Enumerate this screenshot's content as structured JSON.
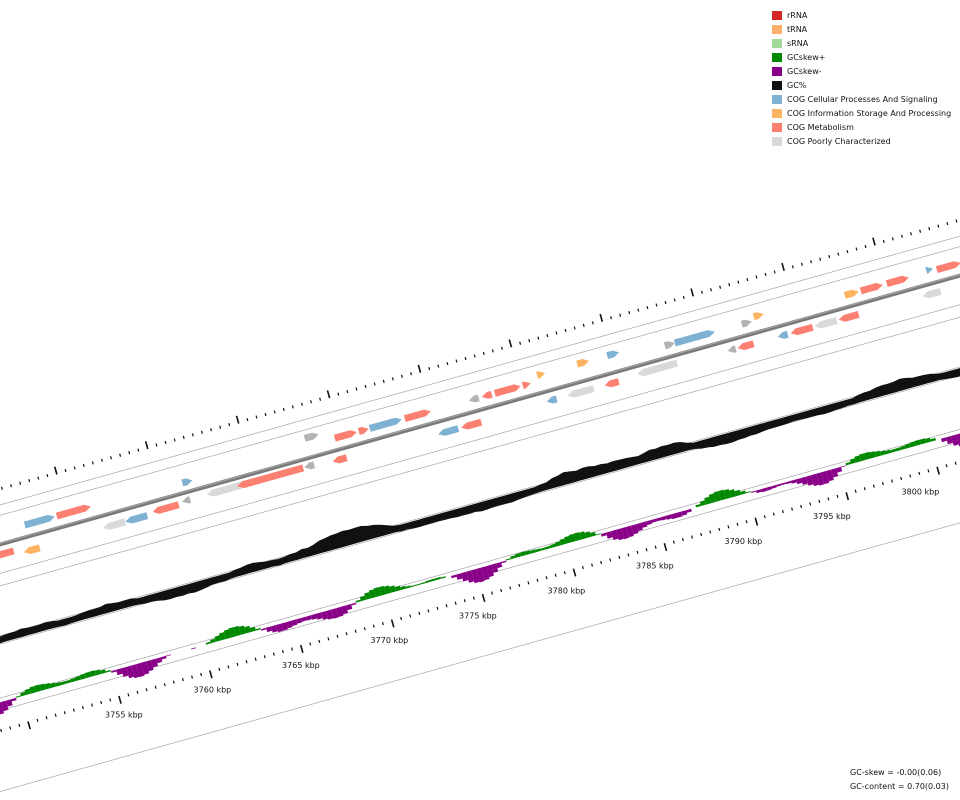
{
  "legend": [
    {
      "label": "rRNA",
      "color": "#d62728"
    },
    {
      "label": "tRNA",
      "color": "#fdae6b"
    },
    {
      "label": "sRNA",
      "color": "#a1d99b"
    },
    {
      "label": "GCskew+",
      "color": "#008800"
    },
    {
      "label": "GCskew-",
      "color": "#880088"
    },
    {
      "label": "GC%",
      "color": "#111111"
    },
    {
      "label": "COG Cellular Processes And Signaling",
      "color": "#7fb1d3"
    },
    {
      "label": "COG Information Storage And Processing",
      "color": "#fdb462"
    },
    {
      "label": "COG Metabolism",
      "color": "#fb8072"
    },
    {
      "label": "COG Poorly Characterized",
      "color": "#d9d9d9"
    }
  ],
  "ticks": [
    "3755 kbp",
    "3760 kbp",
    "3765 kbp",
    "3770 kbp",
    "3775 kbp",
    "3780 kbp",
    "3785 kbp",
    "3790 kbp",
    "3795 kbp",
    "3800 kbp"
  ],
  "stats": {
    "gc_skew": "GC-skew = -0.00(0.06)",
    "gc_content": "GC-content = 0.70(0.03)"
  },
  "colors": {
    "backbone": "#7a7a7a",
    "track_line": "#9a9a9a",
    "gc": "#111111",
    "skew_pos": "#008800",
    "skew_neg": "#880088",
    "unknown_feature": "#b3b3b3"
  },
  "features": [
    {
      "t": 0.005,
      "o": 10,
      "len": 0.026,
      "cat": "COG Metabolism",
      "dir": -1
    },
    {
      "t": 0.04,
      "o": 14,
      "len": 0.016,
      "cat": "COG Information Storage And Processing",
      "dir": -1
    },
    {
      "t": 0.048,
      "o": -12,
      "len": 0.03,
      "cat": "COG Cellular Processes And Signaling",
      "dir": 1
    },
    {
      "t": 0.08,
      "o": -12,
      "len": 0.034,
      "cat": "COG Metabolism",
      "dir": 1
    },
    {
      "t": 0.12,
      "o": 12,
      "len": 0.022,
      "cat": "COG Poorly Characterized",
      "dir": -1
    },
    {
      "t": 0.142,
      "o": 12,
      "len": 0.022,
      "cat": "COG Cellular Processes And Signaling",
      "dir": -1
    },
    {
      "t": 0.17,
      "o": 10,
      "len": 0.026,
      "cat": "COG Metabolism",
      "dir": -1
    },
    {
      "t": 0.2,
      "o": 8,
      "len": 0.008,
      "cat": "unknown",
      "dir": -1
    },
    {
      "t": 0.205,
      "o": -10,
      "len": 0.01,
      "cat": "COG Cellular Processes And Signaling",
      "dir": 1
    },
    {
      "t": 0.225,
      "o": 8,
      "len": 0.034,
      "cat": "COG Poorly Characterized",
      "dir": -1
    },
    {
      "t": 0.255,
      "o": 8,
      "len": 0.066,
      "cat": "COG Metabolism",
      "dir": -1
    },
    {
      "t": 0.322,
      "o": 8,
      "len": 0.01,
      "cat": "unknown",
      "dir": -1
    },
    {
      "t": 0.33,
      "o": -20,
      "len": 0.014,
      "cat": "unknown",
      "dir": 1
    },
    {
      "t": 0.35,
      "o": 10,
      "len": 0.014,
      "cat": "COG Metabolism",
      "dir": -1
    },
    {
      "t": 0.358,
      "o": -12,
      "len": 0.022,
      "cat": "COG Metabolism",
      "dir": 1
    },
    {
      "t": 0.382,
      "o": -12,
      "len": 0.01,
      "cat": "COG Metabolism",
      "dir": 1
    },
    {
      "t": 0.393,
      "o": -12,
      "len": 0.032,
      "cat": "COG Cellular Processes And Signaling",
      "dir": 1
    },
    {
      "t": 0.428,
      "o": -12,
      "len": 0.026,
      "cat": "COG Metabolism",
      "dir": 1
    },
    {
      "t": 0.455,
      "o": 12,
      "len": 0.02,
      "cat": "COG Cellular Processes And Signaling",
      "dir": -1
    },
    {
      "t": 0.478,
      "o": 12,
      "len": 0.02,
      "cat": "COG Metabolism",
      "dir": -1
    },
    {
      "t": 0.492,
      "o": -12,
      "len": 0.01,
      "cat": "unknown",
      "dir": -1
    },
    {
      "t": 0.505,
      "o": -12,
      "len": 0.01,
      "cat": "COG Metabolism",
      "dir": -1
    },
    {
      "t": 0.518,
      "o": -12,
      "len": 0.026,
      "cat": "COG Metabolism",
      "dir": 1
    },
    {
      "t": 0.546,
      "o": -12,
      "len": 0.008,
      "cat": "COG Metabolism",
      "dir": 1
    },
    {
      "t": 0.562,
      "o": -18,
      "len": 0.008,
      "cat": "COG Information Storage And Processing",
      "dir": 1
    },
    {
      "t": 0.564,
      "o": 10,
      "len": 0.01,
      "cat": "COG Cellular Processes And Signaling",
      "dir": -1
    },
    {
      "t": 0.585,
      "o": 10,
      "len": 0.026,
      "cat": "COG Poorly Characterized",
      "dir": -1
    },
    {
      "t": 0.602,
      "o": -18,
      "len": 0.012,
      "cat": "COG Information Storage And Processing",
      "dir": 1
    },
    {
      "t": 0.622,
      "o": 10,
      "len": 0.014,
      "cat": "COG Metabolism",
      "dir": -1
    },
    {
      "t": 0.632,
      "o": -18,
      "len": 0.012,
      "cat": "COG Cellular Processes And Signaling",
      "dir": 1
    },
    {
      "t": 0.655,
      "o": 8,
      "len": 0.04,
      "cat": "COG Poorly Characterized",
      "dir": -1
    },
    {
      "t": 0.688,
      "o": -12,
      "len": 0.01,
      "cat": "unknown",
      "dir": 1
    },
    {
      "t": 0.698,
      "o": -12,
      "len": 0.04,
      "cat": "COG Cellular Processes And Signaling",
      "dir": 1
    },
    {
      "t": 0.745,
      "o": 10,
      "len": 0.008,
      "cat": "unknown",
      "dir": -1
    },
    {
      "t": 0.755,
      "o": 10,
      "len": 0.016,
      "cat": "COG Metabolism",
      "dir": -1
    },
    {
      "t": 0.765,
      "o": -12,
      "len": 0.01,
      "cat": "unknown",
      "dir": 1
    },
    {
      "t": 0.778,
      "o": -16,
      "len": 0.01,
      "cat": "COG Information Storage And Processing",
      "dir": 1
    },
    {
      "t": 0.795,
      "o": 10,
      "len": 0.01,
      "cat": "COG Cellular Processes And Signaling",
      "dir": -1
    },
    {
      "t": 0.808,
      "o": 10,
      "len": 0.022,
      "cat": "COG Metabolism",
      "dir": -1
    },
    {
      "t": 0.832,
      "o": 10,
      "len": 0.022,
      "cat": "COG Poorly Characterized",
      "dir": -1
    },
    {
      "t": 0.856,
      "o": 10,
      "len": 0.02,
      "cat": "COG Metabolism",
      "dir": -1
    },
    {
      "t": 0.868,
      "o": -12,
      "len": 0.014,
      "cat": "COG Information Storage And Processing",
      "dir": 1
    },
    {
      "t": 0.884,
      "o": -12,
      "len": 0.022,
      "cat": "COG Metabolism",
      "dir": 1
    },
    {
      "t": 0.91,
      "o": -12,
      "len": 0.022,
      "cat": "COG Metabolism",
      "dir": 1
    },
    {
      "t": 0.94,
      "o": 10,
      "len": 0.018,
      "cat": "COG Poorly Characterized",
      "dir": -1
    },
    {
      "t": 0.95,
      "o": -14,
      "len": 0.006,
      "cat": "COG Cellular Processes And Signaling",
      "dir": 1
    },
    {
      "t": 0.96,
      "o": -12,
      "len": 0.024,
      "cat": "COG Metabolism",
      "dir": 1
    },
    {
      "t": 0.986,
      "o": -12,
      "len": 0.016,
      "cat": "COG Metabolism",
      "dir": 1
    }
  ]
}
